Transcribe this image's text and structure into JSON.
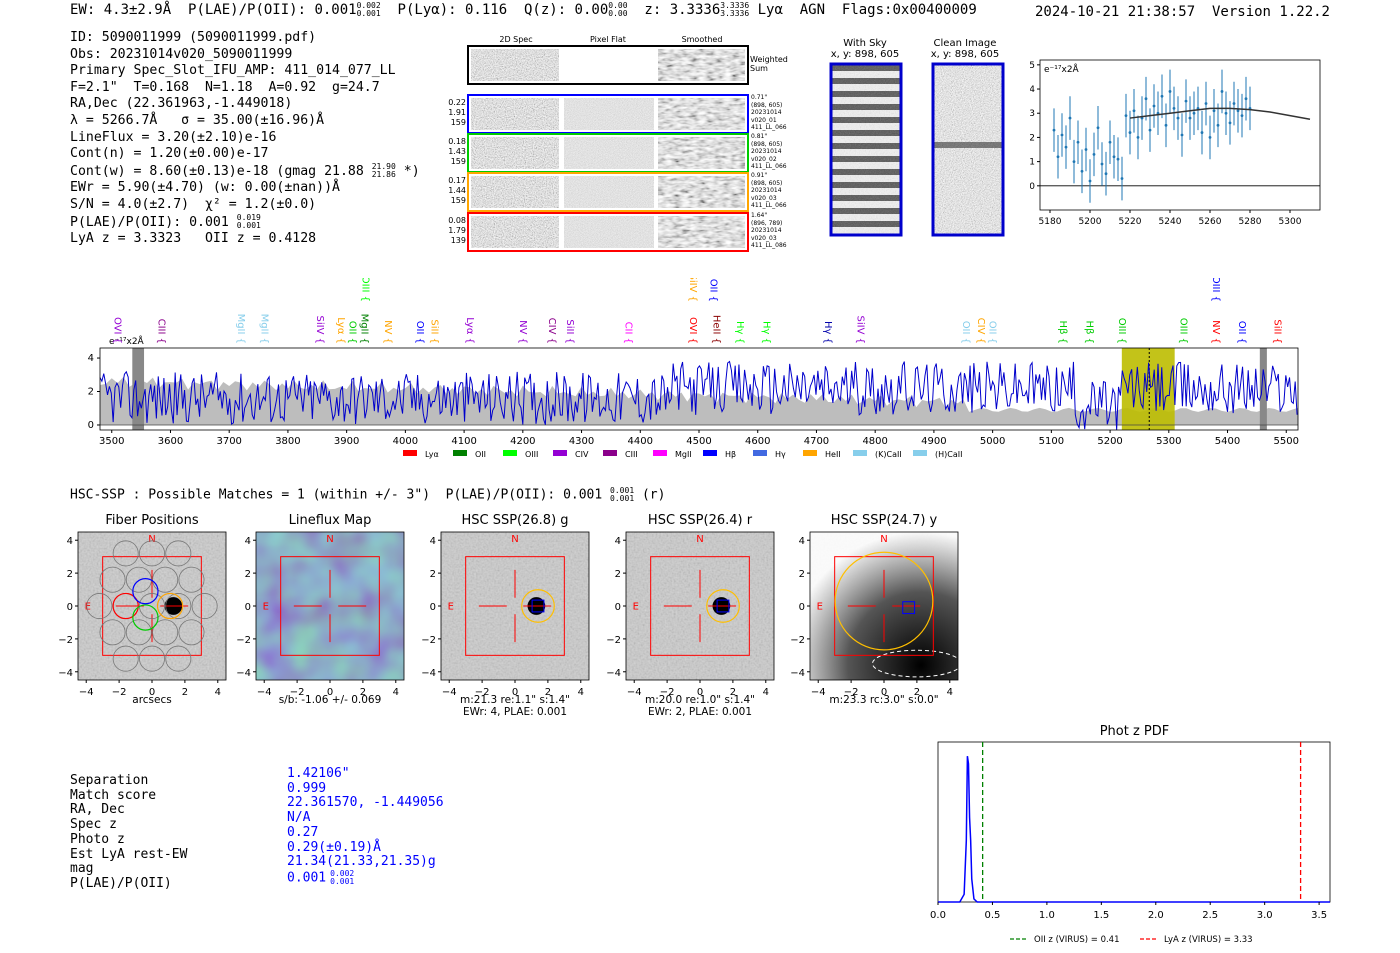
{
  "header": {
    "ew": "EW: 4.3±2.9Å",
    "plae_label": "P(LAE)/P(OII): 0.001",
    "plae_hi": "0.002",
    "plae_lo": "0.001",
    "plya": "P(Lyα): 0.116",
    "qz_label": "Q(z): 0.00",
    "qz_hi": "0.00",
    "qz_lo": "0.00",
    "z_label": "z: 3.3336",
    "z_hi": "3.3336",
    "z_lo": "3.3336",
    "line_agn": "Lyα  AGN  Flags:0x00400009",
    "datestamp": "2024-10-21 21:38:57  Version 1.22.2"
  },
  "info": {
    "id": "ID: 5090011999 (5090011999.pdf)",
    "obs": "Obs: 20231014v020_5090011999",
    "primary": "Primary Spec_Slot_IFU_AMP: 411_014_077_LL",
    "fit": "F=2.1\"  T=0.168  N=1.18  A=0.92  g=24.7",
    "radec": "RA,Dec (22.361963,-1.449018)",
    "wave": "λ = 5266.7Å   σ = 35.00(±16.96)Å",
    "lineflux": "LineFlux = 3.20(±2.10)e-16",
    "contn": "Cont(n) = 1.20(±0.00)e-17",
    "contw": "Cont(w) = 8.60(±0.13)e-18 (gmag 21.88",
    "contw_hi": "21.90",
    "contw_lo": "21.86",
    "contw_end": " *)",
    "ewr": "EWr = 5.90(±4.70) (w: 0.00(±nan))Å",
    "sn": "S/N = 4.0(±2.7)  χ² = 1.2(±0.0)",
    "plae": "P(LAE)/P(OII): 0.001",
    "plae_hi": "0.019",
    "plae_lo": "0.001",
    "lya": "LyA z = 3.3323   OII z = 0.4128"
  },
  "cutouts": {
    "headers": [
      "2D Spec",
      "Pixel Flat",
      "Smoothed"
    ],
    "weighted_sum": "Weighted Sum",
    "rows": [
      {
        "left": [
          "0.22",
          "1.91",
          "159"
        ],
        "right": [
          "0.71\"",
          "(898, 605)",
          "20231014",
          "v020_01",
          "411_LL_066"
        ],
        "color": "#0000ff"
      },
      {
        "left": [
          "0.18",
          "1.43",
          "159"
        ],
        "right": [
          "0.81\"",
          "(898, 605)",
          "20231014",
          "v020_02",
          "411_LL_066"
        ],
        "color": "#00cc00"
      },
      {
        "left": [
          "0.17",
          "1.44",
          "159"
        ],
        "right": [
          "0.91\"",
          "(898, 605)",
          "20231014",
          "v020_03",
          "411_LL_066"
        ],
        "color": "#ffa500"
      },
      {
        "left": [
          "0.08",
          "1.79",
          "139"
        ],
        "right": [
          "1.64\"",
          "(896, 789)",
          "20231014",
          "v020_03",
          "411_LL_086"
        ],
        "color": "#ff0000"
      }
    ]
  },
  "sky": {
    "with_sky_title": "With Sky",
    "with_sky_coords": "x, y: 898, 605",
    "clean_title": "Clean Image",
    "clean_coords": "x, y: 898, 605"
  },
  "hsc": {
    "line": "HSC-SSP : Possible Matches = 1 (within +/- 3\")  P(LAE)/P(OII): 0.001",
    "line_hi": "0.001",
    "line_lo": "0.001",
    "line_end": " (r)",
    "panels": [
      {
        "title": "Fiber Positions",
        "caption1": "arcsecs",
        "caption2": ""
      },
      {
        "title": "Lineflux Map",
        "caption1": "s/b: -1.06 +/- 0.069",
        "caption2": ""
      },
      {
        "title": "HSC SSP(26.8) g",
        "caption1": "m:21.3  re:1.1\"  s:1.4\"",
        "caption2": "EWr: 4, PLAE: 0.001"
      },
      {
        "title": "HSC SSP(26.4) r",
        "caption1": "m:20.0  re:1.0\"  s:1.4\"",
        "caption2": "EWr: 2, PLAE: 0.001"
      },
      {
        "title": "HSC SSP(24.7) y",
        "caption1": "m:23.3 rc:3.0\"  s:0.0\"",
        "caption2": ""
      }
    ],
    "tick_labels": [
      "4",
      "2",
      "0",
      "−2",
      "−4"
    ],
    "x_tick_labels": [
      "−4",
      "−2",
      "0",
      "2",
      "4"
    ],
    "n_label": "N",
    "e_label": "E"
  },
  "match": {
    "labels": [
      "Separation",
      "Match score",
      "RA, Dec",
      "Spec z",
      "Photo z",
      "Est LyA rest-EW",
      "mag",
      "P(LAE)/P(OII)"
    ],
    "values": [
      "1.42106\"",
      "0.999",
      "22.361570, -1.449056",
      "N/A",
      "0.27",
      "0.29(±0.19)Å",
      "21.34(21.33,21.35)g",
      "0.001"
    ],
    "plae_hi": "0.002",
    "plae_lo": "0.001"
  },
  "chart_data": [
    {
      "type": "line",
      "title": "",
      "ylabel": "e⁻¹⁷x2Å",
      "xlabel": "",
      "xlim": [
        5175,
        5315
      ],
      "ylim": [
        -1,
        5.2
      ],
      "x_ticks": [
        5180,
        5200,
        5220,
        5240,
        5260,
        5280,
        5300
      ],
      "y_ticks": [
        0,
        1,
        2,
        3,
        4,
        5
      ],
      "series": [
        {
          "name": "data",
          "style": "errorbar",
          "color": "#1f77b4",
          "x": [
            5182,
            5184,
            5186,
            5188,
            5190,
            5192,
            5194,
            5196,
            5198,
            5200,
            5202,
            5204,
            5206,
            5208,
            5210,
            5212,
            5214,
            5216,
            5218,
            5220,
            5222,
            5224,
            5226,
            5228,
            5230,
            5232,
            5234,
            5236,
            5238,
            5240,
            5242,
            5244,
            5246,
            5248,
            5250,
            5252,
            5254,
            5256,
            5258,
            5260,
            5262,
            5264,
            5266,
            5268,
            5270,
            5272,
            5274,
            5276,
            5278,
            5280
          ],
          "y": [
            2.3,
            1.2,
            2.1,
            1.6,
            2.8,
            1.0,
            1.8,
            0.6,
            1.5,
            0.2,
            1.3,
            2.4,
            0.9,
            0.5,
            1.8,
            1.2,
            1.1,
            0.3,
            2.9,
            2.2,
            3.1,
            2.0,
            2.8,
            3.6,
            2.3,
            3.3,
            3.0,
            3.7,
            2.5,
            3.9,
            3.2,
            2.8,
            2.1,
            3.5,
            2.8,
            3.0,
            3.2,
            2.2,
            3.4,
            2.0,
            3.1,
            2.5,
            3.9,
            3.0,
            2.6,
            3.4,
            3.1,
            2.9,
            3.6,
            3.2
          ]
        },
        {
          "name": "fit",
          "style": "line",
          "color": "#333333",
          "x": [
            5220,
            5230,
            5240,
            5250,
            5260,
            5270,
            5280,
            5290,
            5300,
            5310
          ],
          "y": [
            2.8,
            2.9,
            3.0,
            3.1,
            3.2,
            3.2,
            3.15,
            3.05,
            2.9,
            2.75
          ]
        }
      ]
    },
    {
      "type": "line",
      "title": "",
      "ylabel": "e⁻¹⁷x2Å",
      "xlim": [
        3480,
        5520
      ],
      "ylim": [
        -0.3,
        4.6
      ],
      "x_ticks": [
        3500,
        3600,
        3700,
        3800,
        3900,
        4000,
        4100,
        4200,
        4300,
        4400,
        4500,
        4600,
        4700,
        4800,
        4900,
        5000,
        5100,
        5200,
        5300,
        5400,
        5500
      ],
      "y_ticks": [
        0,
        2,
        4
      ],
      "highlight_band": [
        5220,
        5310
      ],
      "fit_line_x": 5266.7,
      "line_labels": [
        {
          "x": 3510,
          "label": "OVI",
          "color": "#9400d3",
          "row": 1
        },
        {
          "x": 3585,
          "label": "CIII",
          "color": "#8b008b",
          "row": 1
        },
        {
          "x": 3720,
          "label": "MgII",
          "color": "#87ceeb",
          "row": 1
        },
        {
          "x": 3760,
          "label": "MgII",
          "color": "#87ceeb",
          "row": 1
        },
        {
          "x": 3855,
          "label": "SiIV",
          "color": "#9400d3",
          "row": 1
        },
        {
          "x": 3890,
          "label": "Lyα",
          "color": "#ffa500",
          "row": 1
        },
        {
          "x": 3910,
          "label": "OII",
          "color": "#00cc00",
          "row": 1
        },
        {
          "x": 3930,
          "label": "MgII",
          "color": "#008000",
          "row": 1
        },
        {
          "x": 3932,
          "label": "OIII",
          "color": "#00ff00",
          "row": 0
        },
        {
          "x": 3970,
          "label": "NV",
          "color": "#ffa500",
          "row": 1
        },
        {
          "x": 4025,
          "label": "OII",
          "color": "#0000ff",
          "row": 1
        },
        {
          "x": 4050,
          "label": "SiII",
          "color": "#ffa500",
          "row": 1
        },
        {
          "x": 4110,
          "label": "Lyα",
          "color": "#9400d3",
          "row": 1
        },
        {
          "x": 4200,
          "label": "NV",
          "color": "#9400d3",
          "row": 1
        },
        {
          "x": 4250,
          "label": "CIV",
          "color": "#8b008b",
          "row": 1
        },
        {
          "x": 4280,
          "label": "SiII",
          "color": "#9400d3",
          "row": 1
        },
        {
          "x": 4380,
          "label": "CII",
          "color": "#ff00ff",
          "row": 1
        },
        {
          "x": 4490,
          "label": "OVI",
          "color": "#ff0000",
          "row": 1
        },
        {
          "x": 4490,
          "label": "SiIV",
          "color": "#ffa500",
          "row": 0
        },
        {
          "x": 4525,
          "label": "OII",
          "color": "#0000ff",
          "row": 0
        },
        {
          "x": 4530,
          "label": "HeII",
          "color": "#8b0000",
          "row": 1
        },
        {
          "x": 4570,
          "label": "Hγ",
          "color": "#00ff00",
          "row": 1
        },
        {
          "x": 4615,
          "label": "Hγ",
          "color": "#00ff00",
          "row": 1
        },
        {
          "x": 4720,
          "label": "Hγ",
          "color": "#0000aa",
          "row": 1
        },
        {
          "x": 4775,
          "label": "SiIV",
          "color": "#9400d3",
          "row": 1
        },
        {
          "x": 4955,
          "label": "OII",
          "color": "#87ceeb",
          "row": 1
        },
        {
          "x": 4980,
          "label": "CIV",
          "color": "#ffa500",
          "row": 1
        },
        {
          "x": 5000,
          "label": "OII",
          "color": "#87ceeb",
          "row": 1
        },
        {
          "x": 5120,
          "label": "Hβ",
          "color": "#00cc00",
          "row": 1
        },
        {
          "x": 5165,
          "label": "Hβ",
          "color": "#00cc00",
          "row": 1
        },
        {
          "x": 5220,
          "label": "OIII",
          "color": "#00cc00",
          "row": 1
        },
        {
          "x": 5325,
          "label": "OIII",
          "color": "#00cc00",
          "row": 1
        },
        {
          "x": 5380,
          "label": "NV",
          "color": "#ff0000",
          "row": 1
        },
        {
          "x": 5425,
          "label": "OII",
          "color": "#0000ff",
          "row": 1
        },
        {
          "x": 5380,
          "label": "OIII",
          "color": "#0000ff",
          "row": 0
        },
        {
          "x": 5485,
          "label": "SiII",
          "color": "#ff0000",
          "row": 1
        }
      ],
      "legend": [
        {
          "label": "Lyα",
          "color": "#ff0000"
        },
        {
          "label": "OII",
          "color": "#008000"
        },
        {
          "label": "OIII",
          "color": "#00ff00"
        },
        {
          "label": "CIV",
          "color": "#9400d3"
        },
        {
          "label": "CIII",
          "color": "#8b008b"
        },
        {
          "label": "MgII",
          "color": "#ff00ff"
        },
        {
          "label": "Hβ",
          "color": "#0000ff"
        },
        {
          "label": "Hγ",
          "color": "#4169e1"
        },
        {
          "label": "HeII",
          "color": "#ffa500"
        },
        {
          "label": "(K)CaII",
          "color": "#87ceeb"
        },
        {
          "label": "(H)CaII",
          "color": "#87ceeb"
        }
      ]
    },
    {
      "type": "line",
      "title": "Phot z PDF",
      "xlim": [
        0,
        3.6
      ],
      "ylim": [
        0,
        1
      ],
      "x_ticks": [
        0.0,
        0.5,
        1.0,
        1.5,
        2.0,
        2.5,
        3.0,
        3.5
      ],
      "x_tick_labels": [
        "0.0",
        "0.5",
        "1.0",
        "1.5",
        "2.0",
        "2.5",
        "3.0",
        "3.5"
      ],
      "series": [
        {
          "name": "pdf",
          "color": "#0000ff",
          "x": [
            0.0,
            0.2,
            0.24,
            0.26,
            0.27,
            0.28,
            0.29,
            0.3,
            0.31,
            0.33,
            0.36,
            0.4,
            1.0,
            3.6
          ],
          "y": [
            0.0,
            0.0,
            0.05,
            0.4,
            0.95,
            0.9,
            0.55,
            0.4,
            0.15,
            0.02,
            0.0,
            0.0,
            0.0,
            0.0
          ]
        }
      ],
      "vlines": [
        {
          "x": 0.41,
          "color": "#008000",
          "label": "OII z (VIRUS) = 0.41"
        },
        {
          "x": 3.33,
          "color": "#ff0000",
          "label": "LyA z (VIRUS) = 3.33"
        }
      ]
    }
  ]
}
